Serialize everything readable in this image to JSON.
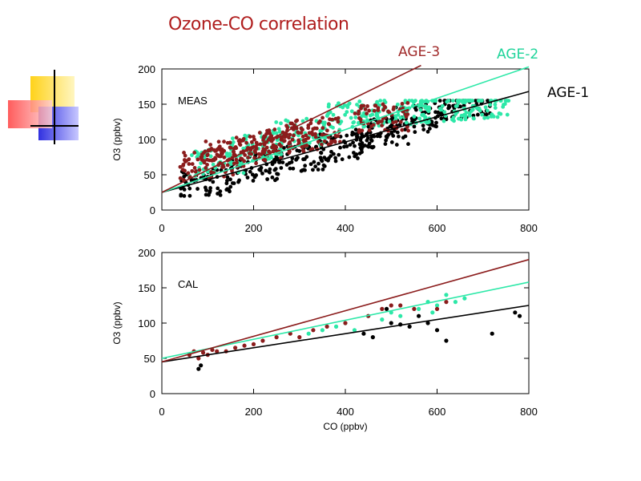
{
  "slide": {
    "title": "Ozone-CO correlation",
    "title_color": "#b01e1e",
    "legend_labels": [
      {
        "text": "AGE-3",
        "color": "#a02a2a"
      },
      {
        "text": "AGE-2",
        "color": "#1fd49a"
      },
      {
        "text": "AGE-1",
        "color": "#000000"
      }
    ]
  },
  "chart_data": [
    {
      "type": "scatter",
      "panel_label": "MEAS",
      "xlabel": "",
      "ylabel": "O3 (ppbv)",
      "xlim": [
        0,
        800
      ],
      "ylim": [
        0,
        200
      ],
      "xticks": [
        0,
        200,
        400,
        600,
        800
      ],
      "yticks": [
        0,
        50,
        100,
        150,
        200
      ],
      "series": [
        {
          "name": "AGE-1",
          "color": "#000000",
          "scatter_center": [
            [
              560,
              130
            ],
            [
              480,
              110
            ],
            [
              400,
              90
            ],
            [
              660,
              150
            ],
            [
              300,
              75
            ],
            [
              200,
              60
            ],
            [
              100,
              40
            ]
          ],
          "fit_line": [
            [
              0,
              25
            ],
            [
              800,
              168
            ]
          ]
        },
        {
          "name": "AGE-2",
          "color": "#2de8a8",
          "scatter_center": [
            [
              520,
              140
            ],
            [
              420,
              135
            ],
            [
              300,
              110
            ],
            [
              620,
              145
            ],
            [
              200,
              90
            ],
            [
              120,
              70
            ],
            [
              700,
              150
            ]
          ],
          "fit_line": [
            [
              0,
              25
            ],
            [
              800,
              203
            ]
          ]
        },
        {
          "name": "AGE-3",
          "color": "#8b1c1c",
          "scatter_center": [
            [
              150,
              80
            ],
            [
              220,
              90
            ],
            [
              280,
              100
            ],
            [
              100,
              65
            ],
            [
              330,
              110
            ],
            [
              480,
              130
            ]
          ],
          "fit_line": [
            [
              0,
              25
            ],
            [
              565,
              205
            ]
          ]
        }
      ]
    },
    {
      "type": "scatter",
      "panel_label": "CAL",
      "xlabel": "CO (ppbv)",
      "ylabel": "O3 (ppbv)",
      "xlim": [
        0,
        800
      ],
      "ylim": [
        0,
        200
      ],
      "xticks": [
        0,
        200,
        400,
        600,
        800
      ],
      "yticks": [
        0,
        50,
        100,
        150,
        200
      ],
      "series": [
        {
          "name": "AGE-1",
          "color": "#000000",
          "points": [
            [
              80,
              35
            ],
            [
              85,
              40
            ],
            [
              440,
              85
            ],
            [
              460,
              80
            ],
            [
              500,
              100
            ],
            [
              520,
              98
            ],
            [
              560,
              110
            ],
            [
              580,
              100
            ],
            [
              600,
              90
            ],
            [
              620,
              75
            ],
            [
              720,
              85
            ],
            [
              770,
              115
            ],
            [
              780,
              110
            ],
            [
              490,
              120
            ],
            [
              540,
              95
            ]
          ],
          "fit_line": [
            [
              0,
              45
            ],
            [
              800,
              125
            ]
          ]
        },
        {
          "name": "AGE-2",
          "color": "#2de8a8",
          "points": [
            [
              380,
              95
            ],
            [
              400,
              100
            ],
            [
              420,
              90
            ],
            [
              450,
              110
            ],
            [
              480,
              105
            ],
            [
              500,
              115
            ],
            [
              520,
              110
            ],
            [
              560,
              120
            ],
            [
              580,
              130
            ],
            [
              600,
              125
            ],
            [
              620,
              140
            ],
            [
              640,
              130
            ],
            [
              660,
              135
            ],
            [
              590,
              115
            ],
            [
              350,
              90
            ],
            [
              320,
              85
            ]
          ],
          "fit_line": [
            [
              0,
              50
            ],
            [
              800,
              158
            ]
          ]
        },
        {
          "name": "AGE-3",
          "color": "#8b1c1c",
          "points": [
            [
              60,
              55
            ],
            [
              70,
              60
            ],
            [
              80,
              50
            ],
            [
              90,
              58
            ],
            [
              100,
              55
            ],
            [
              110,
              62
            ],
            [
              120,
              60
            ],
            [
              140,
              60
            ],
            [
              160,
              65
            ],
            [
              180,
              68
            ],
            [
              200,
              70
            ],
            [
              220,
              75
            ],
            [
              250,
              80
            ],
            [
              280,
              85
            ],
            [
              300,
              80
            ],
            [
              330,
              90
            ],
            [
              360,
              95
            ],
            [
              400,
              100
            ],
            [
              450,
              110
            ],
            [
              480,
              120
            ],
            [
              500,
              125
            ],
            [
              520,
              125
            ],
            [
              550,
              120
            ],
            [
              600,
              120
            ],
            [
              620,
              130
            ]
          ],
          "fit_line": [
            [
              0,
              45
            ],
            [
              800,
              190
            ]
          ]
        }
      ]
    }
  ]
}
